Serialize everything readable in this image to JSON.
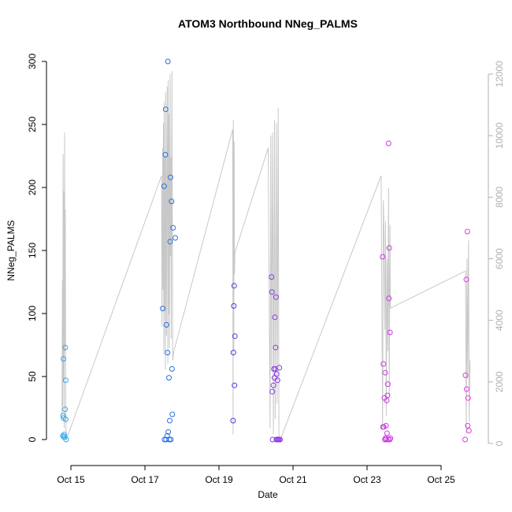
{
  "chart_data": {
    "type": "scatter",
    "title": "ATOM3 Northbound NNeg_PALMS",
    "xlabel": "Date",
    "ylabel": "NNeg_PALMS",
    "x_ticks": [
      "Oct 15",
      "Oct 17",
      "Oct 19",
      "Oct 21",
      "Oct 23",
      "Oct 25"
    ],
    "y_ticks": [
      0,
      50,
      100,
      150,
      200,
      250,
      300
    ],
    "y2_ticks": [
      0,
      2000,
      4000,
      6000,
      8000,
      10000,
      12000
    ],
    "xlim": [
      "Oct 14.3",
      "Oct 26.2"
    ],
    "ylim": [
      -12,
      312
    ],
    "y2lim": [
      -300,
      12500
    ],
    "y2_color": "#b0b0b0",
    "grid": false,
    "points": [
      {
        "x": 14.78,
        "y": 3,
        "color": "#3aa8e8"
      },
      {
        "x": 14.79,
        "y": 19,
        "color": "#3aa8e8"
      },
      {
        "x": 14.8,
        "y": 64,
        "color": "#3aa8e8"
      },
      {
        "x": 14.8,
        "y": 17,
        "color": "#3aa8e8"
      },
      {
        "x": 14.81,
        "y": 2,
        "color": "#3aa8e8"
      },
      {
        "x": 14.82,
        "y": 4,
        "color": "#3aa8e8"
      },
      {
        "x": 14.83,
        "y": 2,
        "color": "#3aa8e8"
      },
      {
        "x": 14.84,
        "y": 24,
        "color": "#3aa8e8"
      },
      {
        "x": 14.85,
        "y": 73,
        "color": "#3aa8e8"
      },
      {
        "x": 14.86,
        "y": 47,
        "color": "#3aa8e8"
      },
      {
        "x": 14.86,
        "y": 16,
        "color": "#3aa8e8"
      },
      {
        "x": 14.87,
        "y": 0,
        "color": "#3aa8e8"
      },
      {
        "x": 17.48,
        "y": 104,
        "color": "#2a6fe0"
      },
      {
        "x": 17.52,
        "y": 201,
        "color": "#2a6fe0"
      },
      {
        "x": 17.53,
        "y": 0,
        "color": "#2a6fe0"
      },
      {
        "x": 17.55,
        "y": 226,
        "color": "#2a6fe0"
      },
      {
        "x": 17.56,
        "y": 262,
        "color": "#2a6fe0"
      },
      {
        "x": 17.57,
        "y": 0,
        "color": "#2a6fe0"
      },
      {
        "x": 17.58,
        "y": 91,
        "color": "#2a6fe0"
      },
      {
        "x": 17.6,
        "y": 3,
        "color": "#2a6fe0"
      },
      {
        "x": 17.61,
        "y": 69,
        "color": "#2a6fe0"
      },
      {
        "x": 17.62,
        "y": 300,
        "color": "#2a6fe0"
      },
      {
        "x": 17.63,
        "y": 6,
        "color": "#2a6fe0"
      },
      {
        "x": 17.65,
        "y": 49,
        "color": "#2a6fe0"
      },
      {
        "x": 17.66,
        "y": 0,
        "color": "#2a6fe0"
      },
      {
        "x": 17.67,
        "y": 15,
        "color": "#2a6fe0"
      },
      {
        "x": 17.68,
        "y": 157,
        "color": "#2a6fe0"
      },
      {
        "x": 17.69,
        "y": 208,
        "color": "#2a6fe0"
      },
      {
        "x": 17.7,
        "y": 0,
        "color": "#2a6fe0"
      },
      {
        "x": 17.72,
        "y": 189,
        "color": "#2a6fe0"
      },
      {
        "x": 17.73,
        "y": 56,
        "color": "#2a6fe0"
      },
      {
        "x": 17.74,
        "y": 20,
        "color": "#2a6fe0"
      },
      {
        "x": 17.76,
        "y": 168,
        "color": "#2a6fe0"
      },
      {
        "x": 17.82,
        "y": 160,
        "color": "#2a6fe0"
      },
      {
        "x": 19.38,
        "y": 15,
        "color": "#4b3fe0"
      },
      {
        "x": 19.39,
        "y": 69,
        "color": "#4b3fe0"
      },
      {
        "x": 19.4,
        "y": 106,
        "color": "#4b3fe0"
      },
      {
        "x": 19.41,
        "y": 122,
        "color": "#4b3fe0"
      },
      {
        "x": 19.42,
        "y": 43,
        "color": "#4b3fe0"
      },
      {
        "x": 19.43,
        "y": 82,
        "color": "#4b3fe0"
      },
      {
        "x": 20.42,
        "y": 129,
        "color": "#8a3ae0"
      },
      {
        "x": 20.43,
        "y": 117,
        "color": "#8a3ae0"
      },
      {
        "x": 20.44,
        "y": 38,
        "color": "#8a3ae0"
      },
      {
        "x": 20.45,
        "y": 0,
        "color": "#8a3ae0"
      },
      {
        "x": 20.47,
        "y": 43,
        "color": "#8a3ae0"
      },
      {
        "x": 20.48,
        "y": 56,
        "color": "#8a3ae0"
      },
      {
        "x": 20.5,
        "y": 49,
        "color": "#8a3ae0"
      },
      {
        "x": 20.51,
        "y": 97,
        "color": "#8a3ae0"
      },
      {
        "x": 20.52,
        "y": 56,
        "color": "#8a3ae0"
      },
      {
        "x": 20.53,
        "y": 73,
        "color": "#8a3ae0"
      },
      {
        "x": 20.54,
        "y": 113,
        "color": "#8a3ae0"
      },
      {
        "x": 20.55,
        "y": 0,
        "color": "#8a3ae0"
      },
      {
        "x": 20.56,
        "y": 52,
        "color": "#8a3ae0"
      },
      {
        "x": 20.57,
        "y": 0,
        "color": "#8a3ae0"
      },
      {
        "x": 20.58,
        "y": 47,
        "color": "#8a3ae0"
      },
      {
        "x": 20.6,
        "y": 0,
        "color": "#8a3ae0"
      },
      {
        "x": 20.62,
        "y": 0,
        "color": "#8a3ae0"
      },
      {
        "x": 20.63,
        "y": 57,
        "color": "#8a3ae0"
      },
      {
        "x": 20.65,
        "y": 0,
        "color": "#8a3ae0"
      },
      {
        "x": 23.42,
        "y": 145,
        "color": "#c83ce0"
      },
      {
        "x": 23.43,
        "y": 10,
        "color": "#c83ce0"
      },
      {
        "x": 23.44,
        "y": 60,
        "color": "#c83ce0"
      },
      {
        "x": 23.45,
        "y": 10,
        "color": "#c83ce0"
      },
      {
        "x": 23.47,
        "y": 33,
        "color": "#c83ce0"
      },
      {
        "x": 23.48,
        "y": 0,
        "color": "#c83ce0"
      },
      {
        "x": 23.49,
        "y": 53,
        "color": "#c83ce0"
      },
      {
        "x": 23.5,
        "y": 1,
        "color": "#c83ce0"
      },
      {
        "x": 23.51,
        "y": 11,
        "color": "#c83ce0"
      },
      {
        "x": 23.52,
        "y": 0,
        "color": "#c83ce0"
      },
      {
        "x": 23.53,
        "y": 31,
        "color": "#c83ce0"
      },
      {
        "x": 23.54,
        "y": 5,
        "color": "#c83ce0"
      },
      {
        "x": 23.55,
        "y": 35,
        "color": "#c83ce0"
      },
      {
        "x": 23.56,
        "y": 44,
        "color": "#c83ce0"
      },
      {
        "x": 23.57,
        "y": 0,
        "color": "#c83ce0"
      },
      {
        "x": 23.58,
        "y": 235,
        "color": "#c83ce0"
      },
      {
        "x": 23.59,
        "y": 112,
        "color": "#c83ce0"
      },
      {
        "x": 23.6,
        "y": 152,
        "color": "#c83ce0"
      },
      {
        "x": 23.61,
        "y": 0,
        "color": "#c83ce0"
      },
      {
        "x": 23.62,
        "y": 85,
        "color": "#c83ce0"
      },
      {
        "x": 23.63,
        "y": 1,
        "color": "#c83ce0"
      },
      {
        "x": 25.65,
        "y": 0,
        "color": "#e23ce0"
      },
      {
        "x": 25.66,
        "y": 51,
        "color": "#e23ce0"
      },
      {
        "x": 25.68,
        "y": 127,
        "color": "#e23ce0"
      },
      {
        "x": 25.69,
        "y": 40,
        "color": "#e23ce0"
      },
      {
        "x": 25.71,
        "y": 165,
        "color": "#e23ce0"
      },
      {
        "x": 25.72,
        "y": 11,
        "color": "#e23ce0"
      },
      {
        "x": 25.73,
        "y": 33,
        "color": "#e23ce0"
      },
      {
        "x": 25.75,
        "y": 7,
        "color": "#e23ce0"
      }
    ],
    "y2_line": {
      "color": "#c8c8c8",
      "points": [
        [
          14.76,
          800
        ],
        [
          14.77,
          5300
        ],
        [
          14.78,
          1200
        ],
        [
          14.79,
          9400
        ],
        [
          14.8,
          2000
        ],
        [
          14.81,
          8200
        ],
        [
          14.82,
          500
        ],
        [
          14.83,
          10100
        ],
        [
          14.84,
          3000
        ],
        [
          14.85,
          7600
        ],
        [
          14.86,
          1500
        ],
        [
          14.87,
          100
        ],
        [
          17.45,
          8700
        ],
        [
          17.46,
          3800
        ],
        [
          17.48,
          9600
        ],
        [
          17.49,
          5000
        ],
        [
          17.5,
          10400
        ],
        [
          17.51,
          2900
        ],
        [
          17.52,
          11100
        ],
        [
          17.53,
          4300
        ],
        [
          17.54,
          9300
        ],
        [
          17.55,
          2400
        ],
        [
          17.56,
          11400
        ],
        [
          17.57,
          7800
        ],
        [
          17.58,
          3500
        ],
        [
          17.6,
          11600
        ],
        [
          17.61,
          8200
        ],
        [
          17.62,
          2600
        ],
        [
          17.63,
          11800
        ],
        [
          17.64,
          4200
        ],
        [
          17.65,
          10700
        ],
        [
          17.66,
          3100
        ],
        [
          17.68,
          12000
        ],
        [
          17.69,
          6100
        ],
        [
          17.7,
          9300
        ],
        [
          17.71,
          3400
        ],
        [
          17.73,
          12100
        ],
        [
          17.74,
          7200
        ],
        [
          17.75,
          2700
        ],
        [
          17.78,
          3000
        ],
        [
          19.37,
          10200
        ],
        [
          19.38,
          300
        ],
        [
          19.39,
          10500
        ],
        [
          19.4,
          3000
        ],
        [
          19.41,
          9800
        ],
        [
          19.42,
          5500
        ],
        [
          19.43,
          6200
        ],
        [
          20.33,
          9600
        ],
        [
          20.38,
          500
        ],
        [
          20.4,
          10000
        ],
        [
          20.42,
          2500
        ],
        [
          20.45,
          10100
        ],
        [
          20.47,
          300
        ],
        [
          20.5,
          10500
        ],
        [
          20.52,
          800
        ],
        [
          20.55,
          10400
        ],
        [
          20.57,
          1300
        ],
        [
          20.6,
          10900
        ],
        [
          20.62,
          100
        ],
        [
          20.65,
          100
        ],
        [
          23.38,
          8700
        ],
        [
          23.42,
          500
        ],
        [
          23.44,
          7900
        ],
        [
          23.46,
          6800
        ],
        [
          23.48,
          3700
        ],
        [
          23.5,
          7200
        ],
        [
          23.52,
          900
        ],
        [
          23.54,
          6000
        ],
        [
          23.56,
          3000
        ],
        [
          23.58,
          8300
        ],
        [
          23.6,
          1500
        ],
        [
          23.62,
          7100
        ],
        [
          23.63,
          4500
        ],
        [
          23.64,
          4400
        ],
        [
          25.66,
          5600
        ],
        [
          25.68,
          300
        ],
        [
          25.7,
          6000
        ],
        [
          25.72,
          2100
        ],
        [
          25.74,
          6600
        ],
        [
          25.76,
          700
        ],
        [
          25.78,
          2700
        ]
      ]
    }
  }
}
